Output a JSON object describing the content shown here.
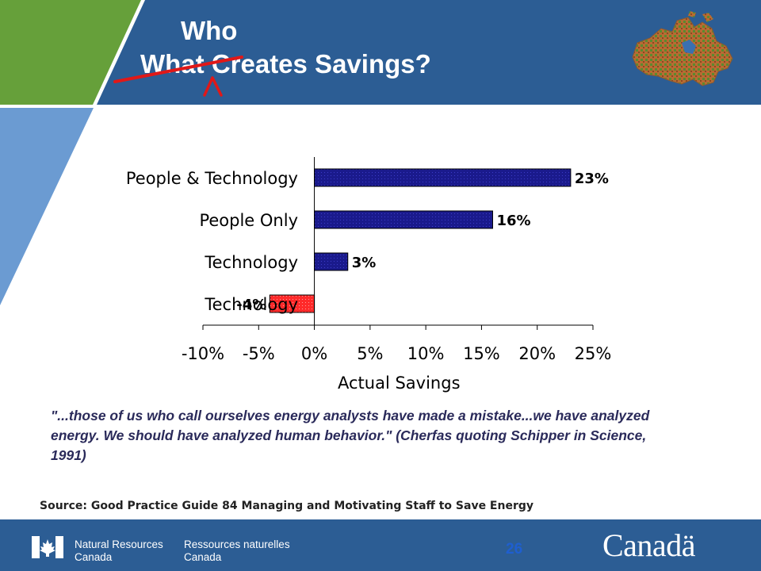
{
  "header": {
    "title_line1": "Who",
    "title_line2": "What Creates Savings?",
    "colors": {
      "banner": "#2c5d94",
      "green": "#66a03a",
      "light_blue": "#6b9bd2"
    }
  },
  "chart_data": {
    "type": "bar",
    "orientation": "horizontal",
    "categories": [
      "People & Technology",
      "People Only",
      "Technology",
      "Technology"
    ],
    "values": [
      23,
      16,
      3,
      -4
    ],
    "value_labels": [
      "23%",
      "16%",
      "3%",
      "-4%"
    ],
    "bar_colors": [
      "#1a1a8c",
      "#1a1a8c",
      "#1a1a8c",
      "#ff2a2a"
    ],
    "xlabel": "Actual Savings",
    "xlim": [
      -10,
      25
    ],
    "xticks": [
      -10,
      -5,
      0,
      5,
      10,
      15,
      20,
      25
    ],
    "xtick_labels": [
      "-10%",
      "-5%",
      "0%",
      "5%",
      "10%",
      "15%",
      "20%",
      "25%"
    ],
    "grid": false
  },
  "quote": "\"...those of us who call ourselves energy analysts have made a mistake...we have analyzed energy. We should have analyzed human behavior.\" (Cherfas quoting Schipper in Science, 1991)",
  "source": "Source: Good Practice Guide 84 Managing and Motivating Staff to Save Energy",
  "footer": {
    "dept_en_1": "Natural Resources",
    "dept_en_2": "Canada",
    "dept_fr_1": "Ressources naturelles",
    "dept_fr_2": "Canada",
    "page_number": "26",
    "wordmark": "Canadä"
  }
}
